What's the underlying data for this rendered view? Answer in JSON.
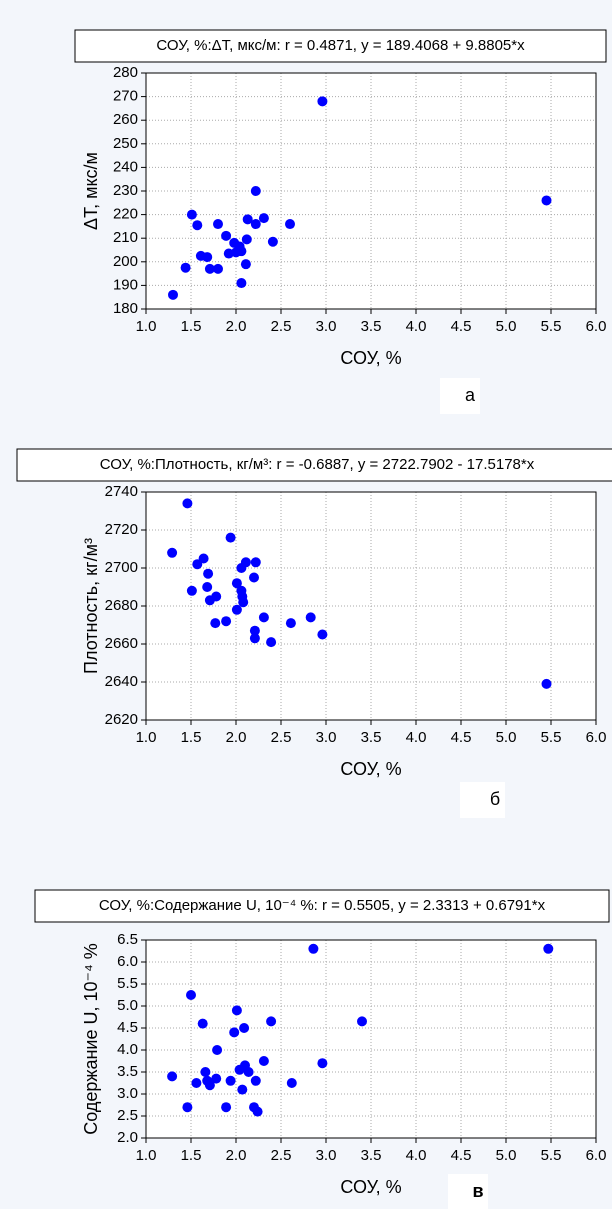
{
  "chart_data": [
    {
      "type": "scatter",
      "title": "СОУ, %:ΔT, мкс/м:   r = 0.4871, y = 189.4068 + 9.8805*x",
      "xlabel": "СОУ, %",
      "ylabel": "ΔT, мкс/м",
      "label": "а",
      "color": "#0000ff",
      "grid": true,
      "x": [
        1.3,
        1.44,
        1.51,
        1.57,
        1.61,
        1.68,
        1.71,
        1.8,
        1.8,
        1.89,
        1.92,
        1.98,
        2.0,
        2.04,
        2.06,
        2.06,
        2.11,
        2.12,
        2.13,
        2.22,
        2.22,
        2.31,
        2.41,
        2.6,
        2.96,
        5.45
      ],
      "values": [
        186,
        197.5,
        220,
        215.5,
        202.5,
        202,
        197,
        197,
        216,
        211,
        203.5,
        208,
        204,
        206.5,
        191,
        204.5,
        199,
        209.5,
        218,
        230,
        216,
        218.5,
        208.5,
        216,
        268,
        226
      ],
      "xlim": [
        1,
        6
      ],
      "xticks": [
        {
          "value": 1,
          "label": "1.0"
        },
        1.5,
        {
          "value": 2,
          "label": "2.0"
        },
        2.5,
        {
          "value": 3,
          "label": "3.0"
        },
        3.5,
        {
          "value": 4,
          "label": "4.0"
        },
        4.5,
        {
          "value": 5,
          "label": "5.0"
        },
        5.5,
        {
          "value": 6,
          "label": "6.0"
        }
      ],
      "ylim": [
        180,
        280
      ],
      "yticks": [
        180,
        190,
        200,
        210,
        220,
        230,
        240,
        250,
        260,
        270,
        280
      ]
    },
    {
      "type": "scatter",
      "title": "СОУ, %:Плотность, кг/м³:   r = -0.6887, y = 2722.7902 - 17.5178*x",
      "xlabel": "СОУ, %",
      "ylabel": "Плотность, кг/м³",
      "label": "б",
      "color": "#0000ff",
      "grid": true,
      "x": [
        1.46,
        1.29,
        1.51,
        1.57,
        1.64,
        1.69,
        1.68,
        1.71,
        1.78,
        1.77,
        1.89,
        1.94,
        2.01,
        2.01,
        2.06,
        2.06,
        2.07,
        2.08,
        2.11,
        2.2,
        2.21,
        2.21,
        2.22,
        2.31,
        2.39,
        2.61,
        2.83,
        2.96,
        5.45
      ],
      "values": [
        2734,
        2708,
        2688,
        2702,
        2705,
        2697,
        2690,
        2683,
        2685,
        2671,
        2672,
        2716,
        2678,
        2692,
        2688,
        2700,
        2685,
        2682,
        2703,
        2695,
        2667,
        2663,
        2703,
        2674,
        2661,
        2671,
        2674,
        2665,
        2639
      ],
      "xlim": [
        1,
        6
      ],
      "xticks": [
        {
          "value": 1,
          "label": "1.0"
        },
        1.5,
        {
          "value": 2,
          "label": "2.0"
        },
        2.5,
        {
          "value": 3,
          "label": "3.0"
        },
        3.5,
        {
          "value": 4,
          "label": "4.0"
        },
        4.5,
        {
          "value": 5,
          "label": "5.0"
        },
        5.5,
        {
          "value": 6,
          "label": "6.0"
        }
      ],
      "ylim": [
        2620,
        2740
      ],
      "yticks": [
        2620,
        2640,
        2660,
        2680,
        2700,
        2720,
        2740
      ]
    },
    {
      "type": "scatter",
      "title": "СОУ, %:Содержание U, 10⁻⁴ %:   r = 0.5505, y = 2.3313 + 0.6791*x",
      "xlabel": "СОУ, %",
      "ylabel": "Содержание U, 10⁻⁴ %",
      "label": "в",
      "color": "#0000ff",
      "grid": true,
      "x": [
        1.29,
        1.46,
        1.5,
        1.56,
        1.63,
        1.66,
        1.68,
        1.71,
        1.78,
        1.79,
        1.89,
        1.94,
        1.98,
        2.01,
        2.04,
        2.07,
        2.09,
        2.1,
        2.14,
        2.2,
        2.22,
        2.24,
        2.31,
        2.39,
        2.62,
        2.86,
        2.96,
        3.4,
        5.47
      ],
      "values": [
        3.4,
        2.7,
        5.25,
        3.25,
        4.6,
        3.5,
        3.3,
        3.2,
        3.35,
        4.0,
        2.7,
        3.3,
        4.4,
        4.9,
        3.55,
        3.1,
        4.5,
        3.65,
        3.5,
        2.7,
        3.3,
        2.6,
        3.75,
        4.65,
        3.25,
        6.3,
        3.7,
        4.65,
        6.3
      ],
      "xlim": [
        1,
        6
      ],
      "xticks": [
        {
          "value": 1,
          "label": "1.0"
        },
        1.5,
        {
          "value": 2,
          "label": "2.0"
        },
        2.5,
        {
          "value": 3,
          "label": "3.0"
        },
        3.5,
        {
          "value": 4,
          "label": "4.0"
        },
        4.5,
        {
          "value": 5,
          "label": "5.0"
        },
        5.5,
        {
          "value": 6,
          "label": "6.0"
        }
      ],
      "ylim": [
        2,
        6.5
      ],
      "yticks": [
        {
          "value": 2,
          "label": "2.0"
        },
        2.5,
        {
          "value": 3,
          "label": "3.0"
        },
        3.5,
        {
          "value": 4,
          "label": "4.0"
        },
        4.5,
        {
          "value": 5,
          "label": "5.0"
        },
        5.5,
        {
          "value": 6,
          "label": "6.0"
        },
        6.5
      ]
    }
  ]
}
